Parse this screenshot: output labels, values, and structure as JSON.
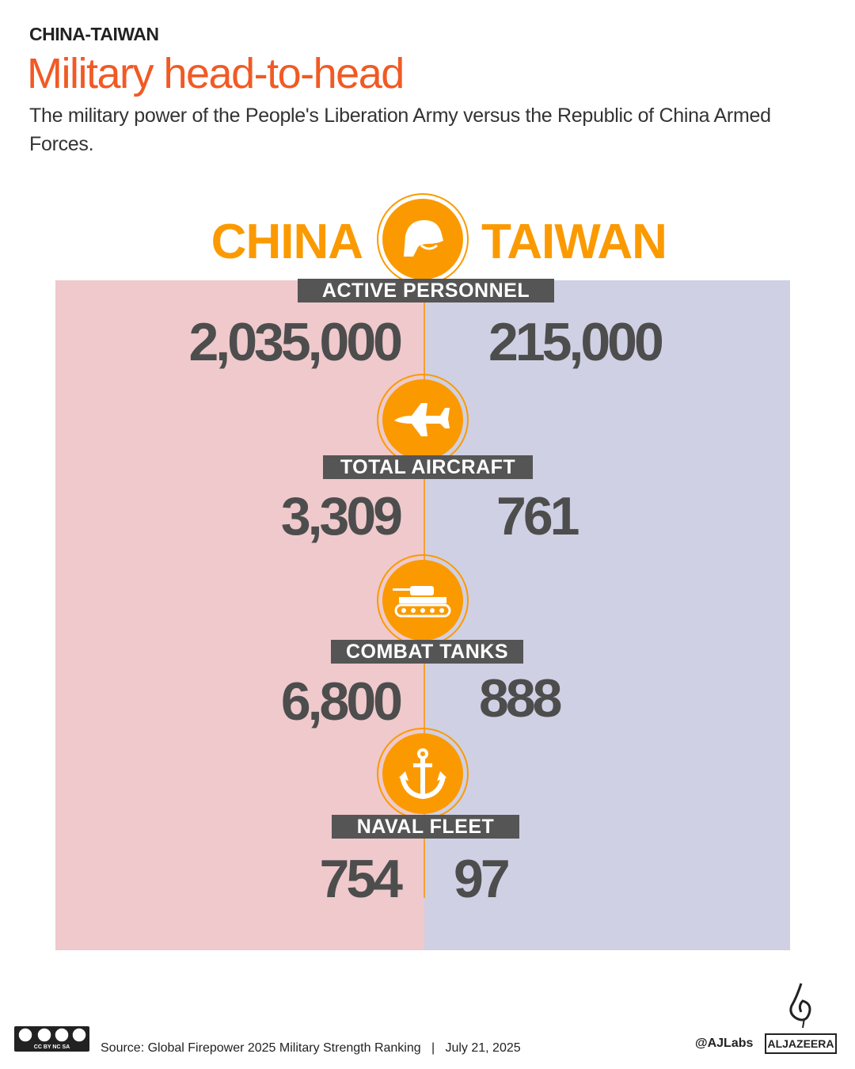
{
  "header": {
    "kicker": "CHINA-TAIWAN",
    "title": "Military head-to-head",
    "subtitle": "The military power of the People's Liberation Army versus the Republic of China Armed Forces."
  },
  "countries": {
    "left": "CHINA",
    "right": "TAIWAN"
  },
  "colors": {
    "accent": "#fb9a00",
    "title": "#f15a24",
    "china_panel": "#efc9cc",
    "taiwan_panel": "#cfd0e4",
    "label_bg": "#555555"
  },
  "metrics": [
    {
      "icon": "helmet-icon",
      "label": "ACTIVE PERSONNEL",
      "china": "2,035,000",
      "taiwan": "215,000"
    },
    {
      "icon": "jet-icon",
      "label": "TOTAL AIRCRAFT",
      "china": "3,309",
      "taiwan": "761"
    },
    {
      "icon": "tank-icon",
      "label": "COMBAT TANKS",
      "china": "6,800",
      "taiwan": "888"
    },
    {
      "icon": "anchor-icon",
      "label": "NAVAL FLEET",
      "china": "754",
      "taiwan": "97"
    }
  ],
  "footer": {
    "source": "Source: Global Firepower 2025 Military Strength Ranking   |   July 21, 2025",
    "license": "CC BY NC SA",
    "handle": "@AJLabs",
    "brand": "ALJAZEERA"
  }
}
